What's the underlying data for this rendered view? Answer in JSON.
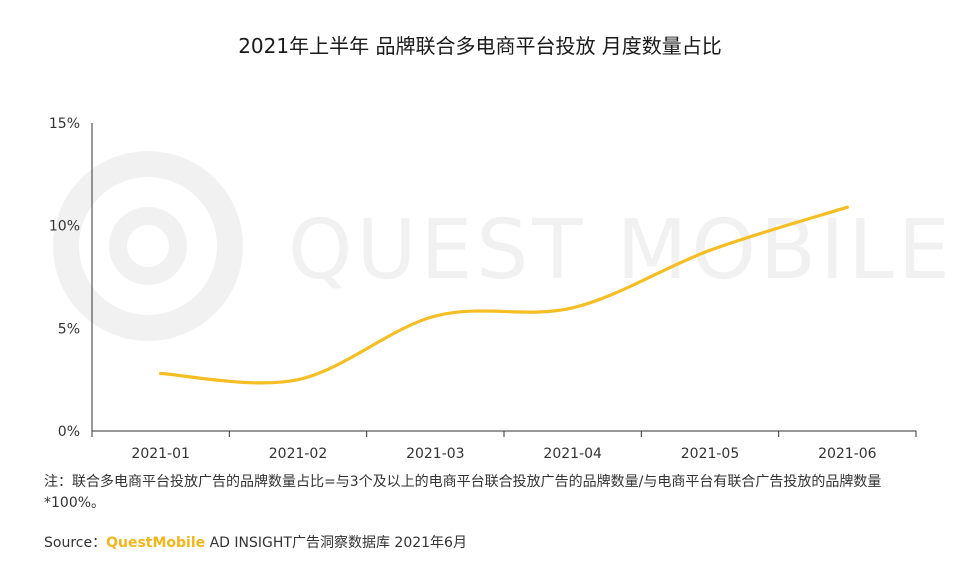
{
  "colors": {
    "line": "#F5BE25",
    "axis": "#333333",
    "watermark": "#F1F1F1",
    "brand": "#F3B51C"
  },
  "watermark": {
    "text": "QUEST MOBILE"
  },
  "chart_data": {
    "type": "line",
    "title": "2021年上半年 品牌联合多电商平台投放 月度数量占比",
    "categories": [
      "2021-01",
      "2021-02",
      "2021-03",
      "2021-04",
      "2021-05",
      "2021-06"
    ],
    "series": [
      {
        "values": [
          2.8,
          2.5,
          5.6,
          6.0,
          8.8,
          10.9
        ]
      }
    ],
    "ylim": [
      0,
      15
    ],
    "yticks": [
      {
        "value": 0,
        "label": "0%"
      },
      {
        "value": 5,
        "label": "5%"
      },
      {
        "value": 10,
        "label": "10%"
      },
      {
        "value": 15,
        "label": "15%"
      }
    ],
    "xlabel": "",
    "ylabel": "",
    "grid": false,
    "smooth": true
  },
  "note": "注：联合多电商平台投放广告的品牌数量占比=与3个及以上的电商平台联合投放广告的品牌数量/与电商平台有联合广告投放的品牌数量*100%。",
  "source": {
    "prefix": "Source：",
    "brand": "QuestMobile",
    "rest": " AD INSIGHT广告洞察数据库 2021年6月"
  }
}
